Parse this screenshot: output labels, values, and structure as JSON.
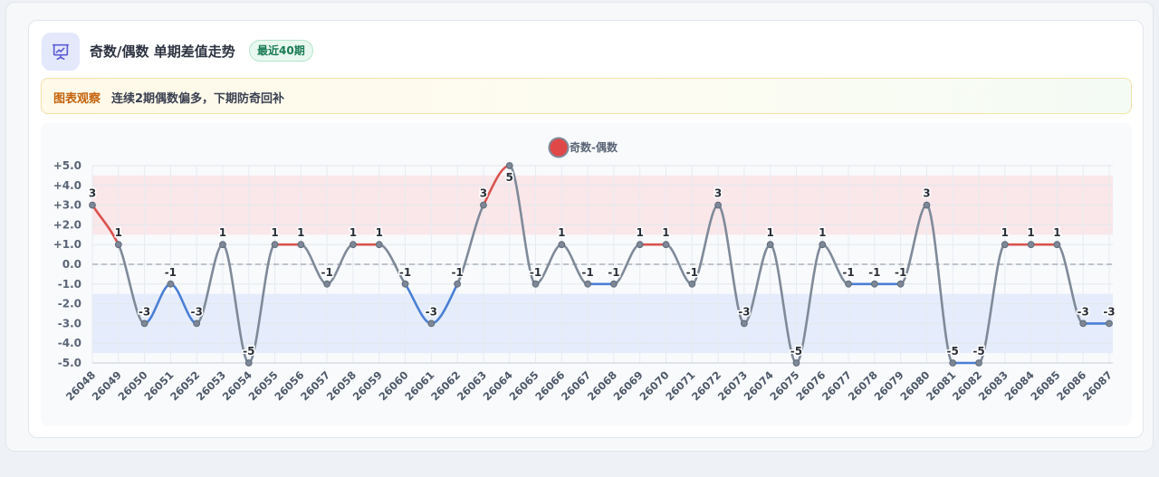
{
  "header": {
    "title": "奇数/偶数 单期差值走势",
    "badge": "最近40期",
    "icon": "presentation-chart-icon"
  },
  "insight": {
    "label": "图表观察",
    "text": "连续2期偶数偏多，下期防奇回补"
  },
  "colors": {
    "positive": "#d9534f",
    "negative": "#4a7fd6",
    "neutral": "#7f8a99",
    "legend_marker": "#e04848",
    "high_band": "#fae3e6",
    "low_band": "#e2e9fa",
    "accent_icon": "#5b5bd6"
  },
  "chart_data": {
    "type": "line",
    "title": "",
    "xlabel": "",
    "ylabel": "",
    "ylim": [
      -5,
      5
    ],
    "y_ticks": [
      "+5.0",
      "+4.0",
      "+3.0",
      "+2.0",
      "+1.0",
      "0.0",
      "-1.0",
      "-2.0",
      "-3.0",
      "-4.0",
      "-5.0"
    ],
    "grid": true,
    "legend_position": "top-center",
    "bands": [
      {
        "from": 1.5,
        "to": 4.5,
        "tone": "high"
      },
      {
        "from": -4.5,
        "to": -1.5,
        "tone": "low"
      }
    ],
    "reference_line": 0,
    "categories": [
      "26048",
      "26049",
      "26050",
      "26051",
      "26052",
      "26053",
      "26054",
      "26055",
      "26056",
      "26057",
      "26058",
      "26059",
      "26060",
      "26061",
      "26062",
      "26063",
      "26064",
      "26065",
      "26066",
      "26067",
      "26068",
      "26069",
      "26070",
      "26071",
      "26072",
      "26073",
      "26074",
      "26075",
      "26076",
      "26077",
      "26078",
      "26079",
      "26080",
      "26081",
      "26082",
      "26083",
      "26084",
      "26085",
      "26086",
      "26087"
    ],
    "series": [
      {
        "name": "奇数-偶数",
        "values": [
          3,
          1,
          -3,
          -1,
          -3,
          1,
          -5,
          1,
          1,
          -1,
          1,
          1,
          -1,
          -3,
          -1,
          3,
          5,
          -1,
          1,
          -1,
          -1,
          1,
          1,
          -1,
          3,
          -3,
          1,
          -5,
          1,
          -1,
          -1,
          -1,
          3,
          -5,
          -5,
          1,
          1,
          1,
          -3,
          -3
        ],
        "labels": [
          "3",
          "1",
          "-3",
          "-1",
          "-3",
          "1",
          "-5",
          "1",
          "1",
          "-1",
          "1",
          "1",
          "-1",
          "-3",
          "-1",
          "3",
          "5",
          "-1",
          "1",
          "-1",
          "-1",
          "1",
          "1",
          "-1",
          "3",
          "-3",
          "1",
          "-5",
          "1",
          "-1",
          "-1",
          "-1",
          "3",
          "-5",
          "-5",
          "1",
          "1",
          "1",
          "-3",
          "-3"
        ]
      }
    ]
  }
}
